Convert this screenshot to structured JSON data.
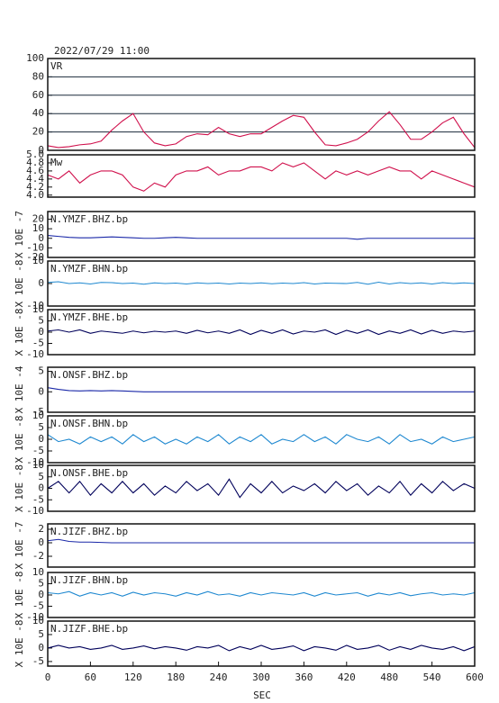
{
  "chart_data": [
    {
      "type": "line",
      "timestamp": "2022/07/29 11:00",
      "title": "VR",
      "color": "#d0104c",
      "grid": true,
      "x": [
        0,
        15,
        30,
        45,
        60,
        75,
        90,
        105,
        120,
        135,
        150,
        165,
        180,
        195,
        210,
        225,
        240,
        255,
        270,
        285,
        300,
        315,
        330,
        345,
        360,
        375,
        390,
        405,
        420,
        435,
        450,
        465,
        480,
        495,
        510,
        525,
        540,
        555,
        570,
        585,
        600
      ],
      "values": [
        5,
        3,
        4,
        6,
        7,
        10,
        22,
        32,
        40,
        20,
        8,
        5,
        7,
        15,
        18,
        17,
        25,
        18,
        15,
        18,
        18,
        25,
        32,
        38,
        36,
        20,
        6,
        5,
        8,
        12,
        20,
        32,
        42,
        28,
        12,
        12,
        20,
        30,
        36,
        18,
        3
      ],
      "xlim": [
        0,
        600
      ],
      "ylim": [
        0,
        100
      ],
      "yticks": [
        0,
        20,
        40,
        60,
        80,
        100
      ]
    },
    {
      "type": "line",
      "title": "Mw",
      "color": "#d0104c",
      "grid": false,
      "x": [
        0,
        15,
        30,
        45,
        60,
        75,
        90,
        105,
        120,
        135,
        150,
        165,
        180,
        195,
        210,
        225,
        240,
        255,
        270,
        285,
        300,
        315,
        330,
        345,
        360,
        375,
        390,
        405,
        420,
        435,
        450,
        465,
        480,
        495,
        510,
        525,
        540,
        555,
        570,
        585,
        600
      ],
      "values": [
        4.5,
        4.4,
        4.6,
        4.3,
        4.5,
        4.6,
        4.6,
        4.5,
        4.2,
        4.1,
        4.3,
        4.2,
        4.5,
        4.6,
        4.6,
        4.7,
        4.5,
        4.6,
        4.6,
        4.7,
        4.7,
        4.6,
        4.8,
        4.7,
        4.8,
        4.6,
        4.4,
        4.6,
        4.5,
        4.6,
        4.5,
        4.6,
        4.7,
        4.6,
        4.6,
        4.4,
        4.6,
        4.5,
        4.4,
        4.3,
        4.2
      ],
      "xlim": [
        0,
        600
      ],
      "ylim": [
        3.95,
        5.0
      ],
      "yticks": [
        {
          "value": 4,
          "label": "4.0"
        },
        4.2,
        4.4,
        4.6,
        4.8,
        {
          "value": 5,
          "label": "5.0"
        }
      ]
    },
    {
      "type": "line",
      "title": "N.YMZF.BHZ.bp",
      "ylabel": "X 10E -7",
      "color": "#1a28a8",
      "x": [
        0,
        15,
        30,
        45,
        60,
        75,
        90,
        105,
        120,
        135,
        150,
        165,
        180,
        195,
        210,
        225,
        240,
        255,
        270,
        285,
        300,
        315,
        330,
        345,
        360,
        375,
        390,
        405,
        420,
        435,
        450,
        465,
        480,
        495,
        510,
        525,
        540,
        555,
        570,
        585,
        600
      ],
      "values": [
        3,
        2,
        1,
        0.5,
        0.5,
        1,
        1.5,
        1,
        0.5,
        0,
        0,
        0.5,
        1,
        0.5,
        0,
        0,
        0,
        0,
        0,
        0,
        0,
        0,
        0,
        0,
        0,
        0,
        0,
        0,
        0,
        -1,
        0,
        0,
        0,
        0,
        0,
        0,
        0,
        0,
        0,
        0,
        0
      ],
      "xlim": [
        0,
        600
      ],
      "ylim": [
        -20,
        28
      ],
      "yticks": [
        -20,
        -10,
        0,
        10,
        20
      ]
    },
    {
      "type": "line",
      "title": "N.YMZF.BHN.bp",
      "ylabel": "X 10E -8",
      "color": "#1e88d0",
      "x": [
        0,
        15,
        30,
        45,
        60,
        75,
        90,
        105,
        120,
        135,
        150,
        165,
        180,
        195,
        210,
        225,
        240,
        255,
        270,
        285,
        300,
        315,
        330,
        345,
        360,
        375,
        390,
        405,
        420,
        435,
        450,
        465,
        480,
        495,
        510,
        525,
        540,
        555,
        570,
        585,
        600
      ],
      "values": [
        0.5,
        0.8,
        0,
        0.3,
        -0.2,
        0.5,
        0.4,
        0,
        0.2,
        -0.3,
        0.3,
        0,
        0.2,
        -0.2,
        0.3,
        0,
        0.2,
        -0.2,
        0.2,
        0,
        0.3,
        -0.1,
        0.2,
        0,
        0.4,
        -0.2,
        0.2,
        0.1,
        0,
        0.5,
        -0.3,
        0.6,
        -0.2,
        0.4,
        0,
        0.3,
        -0.2,
        0.4,
        0,
        0.3,
        0
      ],
      "xlim": [
        0,
        600
      ],
      "ylim": [
        -10,
        10
      ],
      "yticks": [
        -10,
        0,
        10
      ]
    },
    {
      "type": "line",
      "title": "N.YMZF.BHE.bp",
      "ylabel": "X 10E -8",
      "color": "#00005a",
      "x": [
        0,
        15,
        30,
        45,
        60,
        75,
        90,
        105,
        120,
        135,
        150,
        165,
        180,
        195,
        210,
        225,
        240,
        255,
        270,
        285,
        300,
        315,
        330,
        345,
        360,
        375,
        390,
        405,
        420,
        435,
        450,
        465,
        480,
        495,
        510,
        525,
        540,
        555,
        570,
        585,
        600
      ],
      "values": [
        0.5,
        1,
        0,
        1,
        -0.5,
        0.5,
        0,
        -0.5,
        0.5,
        -0.3,
        0.4,
        0,
        0.5,
        -0.5,
        0.8,
        -0.3,
        0.5,
        -0.5,
        1,
        -1,
        0.8,
        -0.5,
        1,
        -0.8,
        0.5,
        0,
        1,
        -1,
        0.8,
        -0.5,
        1,
        -1,
        0.5,
        -0.5,
        1,
        -0.8,
        0.8,
        -0.5,
        0.5,
        0,
        0.5
      ],
      "xlim": [
        0,
        600
      ],
      "ylim": [
        -10,
        10
      ],
      "yticks": [
        -10,
        -5,
        0,
        5,
        10
      ]
    },
    {
      "type": "line",
      "title": "N.ONSF.BHZ.bp",
      "ylabel": "X 10E -4",
      "color": "#1a28a8",
      "x": [
        0,
        15,
        30,
        45,
        60,
        75,
        90,
        105,
        120,
        135,
        150,
        165,
        180,
        195,
        210,
        225,
        240,
        255,
        270,
        285,
        300,
        315,
        330,
        345,
        360,
        375,
        390,
        405,
        420,
        435,
        450,
        465,
        480,
        495,
        510,
        525,
        540,
        555,
        570,
        585,
        600
      ],
      "values": [
        1,
        0.6,
        0.3,
        0.2,
        0.3,
        0.2,
        0.3,
        0.2,
        0.1,
        0,
        0,
        0,
        0,
        0,
        0,
        0,
        0,
        0,
        0,
        0,
        0,
        0,
        0,
        0,
        0,
        0,
        0,
        0,
        0,
        0,
        0,
        0,
        0,
        0,
        0,
        0,
        0,
        0,
        0,
        0,
        0
      ],
      "xlim": [
        0,
        600
      ],
      "ylim": [
        -5,
        6
      ],
      "yticks": [
        -5,
        0,
        5
      ]
    },
    {
      "type": "line",
      "title": "N.ONSF.BHN.bp",
      "ylabel": "X 10E -8",
      "color": "#1e88d0",
      "x": [
        0,
        15,
        30,
        45,
        60,
        75,
        90,
        105,
        120,
        135,
        150,
        165,
        180,
        195,
        210,
        225,
        240,
        255,
        270,
        285,
        300,
        315,
        330,
        345,
        360,
        375,
        390,
        405,
        420,
        435,
        450,
        465,
        480,
        495,
        510,
        525,
        540,
        555,
        570,
        585,
        600
      ],
      "values": [
        2,
        -1,
        0,
        -2,
        1,
        -1,
        1,
        -2,
        2,
        -1,
        1,
        -2,
        0,
        -2,
        1,
        -1,
        2,
        -2,
        1,
        -1,
        2,
        -2,
        0,
        -1,
        2,
        -1,
        1,
        -2,
        2,
        0,
        -1,
        1,
        -2,
        2,
        -1,
        0,
        -2,
        1,
        -1,
        0,
        1
      ],
      "xlim": [
        0,
        600
      ],
      "ylim": [
        -10,
        10
      ],
      "yticks": [
        -10,
        -5,
        0,
        5,
        10
      ]
    },
    {
      "type": "line",
      "title": "N.ONSF.BHE.bp",
      "ylabel": "X 10E -8",
      "color": "#00005a",
      "x": [
        0,
        15,
        30,
        45,
        60,
        75,
        90,
        105,
        120,
        135,
        150,
        165,
        180,
        195,
        210,
        225,
        240,
        255,
        270,
        285,
        300,
        315,
        330,
        345,
        360,
        375,
        390,
        405,
        420,
        435,
        450,
        465,
        480,
        495,
        510,
        525,
        540,
        555,
        570,
        585,
        600
      ],
      "values": [
        0,
        3,
        -2,
        3,
        -3,
        2,
        -2,
        3,
        -2,
        2,
        -3,
        1,
        -2,
        3,
        -1,
        2,
        -3,
        4,
        -4,
        2,
        -2,
        3,
        -2,
        1,
        -1,
        2,
        -2,
        3,
        -1,
        2,
        -3,
        1,
        -2,
        3,
        -3,
        2,
        -2,
        3,
        -1,
        2,
        0
      ],
      "xlim": [
        0,
        600
      ],
      "ylim": [
        -10,
        10
      ],
      "yticks": [
        -10,
        -5,
        0,
        5,
        10
      ]
    },
    {
      "type": "line",
      "title": "N.JIZF.BHZ.bp",
      "ylabel": "X 10E -7",
      "color": "#1a28a8",
      "x": [
        0,
        15,
        30,
        45,
        60,
        75,
        90,
        105,
        120,
        135,
        150,
        165,
        180,
        195,
        210,
        225,
        240,
        255,
        270,
        285,
        300,
        315,
        330,
        345,
        360,
        375,
        390,
        405,
        420,
        435,
        450,
        465,
        480,
        495,
        510,
        525,
        540,
        555,
        570,
        585,
        600
      ],
      "values": [
        0.3,
        0.5,
        0.2,
        0.1,
        0.1,
        0.05,
        0,
        0,
        0,
        0,
        0,
        0,
        0,
        0,
        0,
        0,
        0,
        0,
        0,
        0,
        0,
        0,
        0,
        0,
        0,
        0,
        0,
        0,
        0,
        0,
        0,
        0,
        0,
        0,
        0,
        0,
        0,
        0,
        0,
        0,
        0
      ],
      "xlim": [
        0,
        600
      ],
      "ylim": [
        -3.6,
        2.8
      ],
      "yticks": [
        -2,
        0,
        2
      ]
    },
    {
      "type": "line",
      "title": "N.JIZF.BHN.bp",
      "ylabel": "X 10E -8",
      "color": "#1e88d0",
      "x": [
        0,
        15,
        30,
        45,
        60,
        75,
        90,
        105,
        120,
        135,
        150,
        165,
        180,
        195,
        210,
        225,
        240,
        255,
        270,
        285,
        300,
        315,
        330,
        345,
        360,
        375,
        390,
        405,
        420,
        435,
        450,
        465,
        480,
        495,
        510,
        525,
        540,
        555,
        570,
        585,
        600
      ],
      "values": [
        1,
        0.5,
        1.5,
        -0.5,
        1,
        0,
        1,
        -0.5,
        1.2,
        0,
        1,
        0.5,
        -0.5,
        1,
        0,
        1.5,
        0,
        0.5,
        -0.5,
        1,
        0,
        1,
        0.5,
        0,
        1,
        -0.5,
        1,
        0,
        0.5,
        1,
        -0.5,
        0.8,
        0,
        1,
        -0.3,
        0.5,
        1,
        0,
        0.5,
        0,
        1
      ],
      "xlim": [
        0,
        600
      ],
      "ylim": [
        -10,
        10
      ],
      "yticks": [
        -10,
        -5,
        0,
        5,
        10
      ]
    },
    {
      "type": "line",
      "title": "N.JIZF.BHE.bp",
      "ylabel": "X 10E -8",
      "xlabel": "SEC",
      "color": "#00005a",
      "x": [
        0,
        15,
        30,
        45,
        60,
        75,
        90,
        105,
        120,
        135,
        150,
        165,
        180,
        195,
        210,
        225,
        240,
        255,
        270,
        285,
        300,
        315,
        330,
        345,
        360,
        375,
        390,
        405,
        420,
        435,
        450,
        465,
        480,
        495,
        510,
        525,
        540,
        555,
        570,
        585,
        600
      ],
      "values": [
        0,
        1,
        0,
        0.5,
        -0.5,
        0,
        1,
        -0.5,
        0,
        0.8,
        -0.3,
        0.5,
        0,
        -0.8,
        0.5,
        0,
        1,
        -1,
        0.5,
        -0.5,
        1,
        -0.5,
        0,
        0.8,
        -1,
        0.5,
        0,
        -0.8,
        1,
        -0.5,
        0,
        1,
        -0.8,
        0.5,
        -0.5,
        1,
        0,
        -0.5,
        0.5,
        -1,
        0.5
      ],
      "xlim": [
        0,
        600
      ],
      "ylim": [
        -6.7,
        10
      ],
      "yticks": [
        -5,
        0,
        5,
        10
      ],
      "xticks": [
        0,
        60,
        120,
        180,
        240,
        300,
        360,
        420,
        480,
        540,
        600
      ]
    }
  ]
}
